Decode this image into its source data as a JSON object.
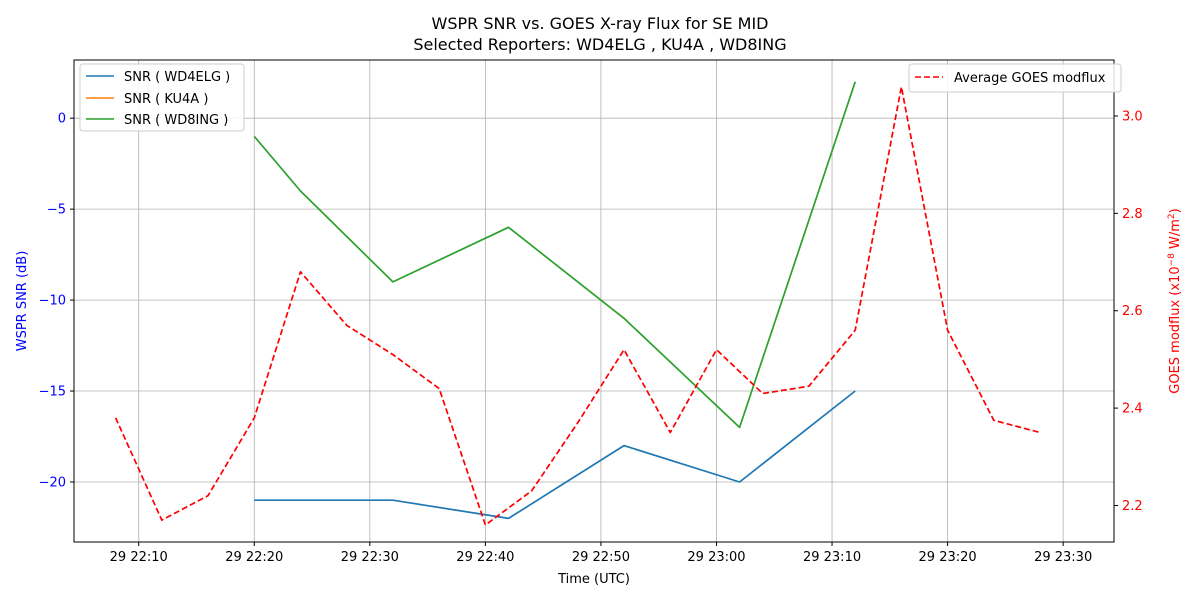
{
  "chart_data": {
    "type": "line",
    "title": "WSPR SNR vs. GOES X-ray Flux for SE MID",
    "subtitle": "Selected Reporters:  WD4ELG ,  KU4A ,  WD8ING",
    "xlabel": "Time (UTC)",
    "ylabel_left": "WSPR SNR (dB)",
    "ylabel_right_main": "GOES modflux (x10",
    "ylabel_right_exp": "−8",
    "ylabel_right_unit": " W/m",
    "ylabel_right_sq": "2",
    "ylabel_right_close": ")",
    "x_ticks": [
      "29 22:10",
      "29 22:20",
      "29 22:30",
      "29 22:40",
      "29 22:50",
      "29 23:00",
      "29 23:10",
      "29 23:20",
      "29 23:30"
    ],
    "x_tick_minutes": [
      10,
      20,
      30,
      40,
      50,
      60,
      70,
      80,
      90
    ],
    "x_range_minutes": [
      4.4,
      94.4
    ],
    "y_left_range": [
      -23.3,
      3.2
    ],
    "y_left_ticks": [
      0,
      -5,
      -10,
      -15,
      -20
    ],
    "y_left_tick_labels": [
      "0",
      "−5",
      "−10",
      "−15",
      "−20"
    ],
    "y_right_range": [
      2.125,
      3.115
    ],
    "y_right_ticks": [
      3.0,
      2.8,
      2.6,
      2.4,
      2.2
    ],
    "y_right_tick_labels": [
      "3.0",
      "2.8",
      "2.6",
      "2.4",
      "2.2"
    ],
    "grid": true,
    "series": [
      {
        "name": "SNR ( WD4ELG )",
        "axis": "left",
        "color": "#1f77b4",
        "dash": "solid",
        "x_minutes": [
          20,
          32,
          42,
          52,
          62,
          72
        ],
        "values": [
          -21,
          -21,
          -22,
          -18,
          -20,
          -15
        ]
      },
      {
        "name": "SNR ( KU4A )",
        "axis": "left",
        "color": "#ff7f0e",
        "dash": "solid",
        "x_minutes": [],
        "values": []
      },
      {
        "name": "SNR ( WD8ING )",
        "axis": "left",
        "color": "#2ca02c",
        "dash": "solid",
        "x_minutes": [
          20,
          24,
          32,
          42,
          52,
          62,
          72
        ],
        "values": [
          -1,
          -4,
          -9,
          -6,
          -11,
          -17,
          2
        ]
      },
      {
        "name": "Average GOES modflux",
        "axis": "right",
        "color": "#ff0000",
        "dash": "dashed",
        "x_minutes": [
          8,
          12,
          16,
          20,
          24,
          28,
          32,
          36,
          40,
          44,
          48,
          52,
          56,
          60,
          64,
          68,
          72,
          76,
          80,
          84,
          88
        ],
        "values": [
          2.38,
          2.17,
          2.22,
          2.38,
          2.68,
          2.57,
          2.51,
          2.44,
          2.16,
          2.23,
          2.37,
          2.52,
          2.35,
          2.52,
          2.43,
          2.445,
          2.56,
          3.06,
          2.56,
          2.375,
          2.35
        ]
      }
    ],
    "legend_left_position": "top-left",
    "legend_right_position": "top-right"
  }
}
